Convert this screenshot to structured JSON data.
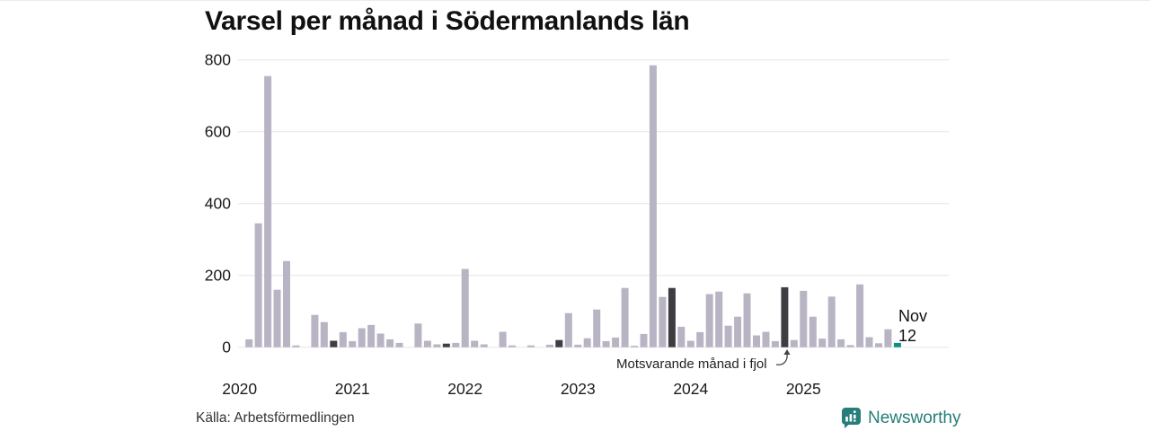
{
  "title": "Varsel per månad i Södermanlands län",
  "source": "Källa: Arbetsförmedlingen",
  "brand": {
    "name": "Newsworthy",
    "color": "#267d79"
  },
  "annotation": {
    "compare_label": "Motsvarande månad i fjol",
    "last_month": "Nov",
    "last_value": "12"
  },
  "colors": {
    "bar": "#b9b4c3",
    "highlight": "#3f3d42",
    "current": "#0b9183",
    "grid": "#e8e7ea",
    "axis_text": "#1a1a1a"
  },
  "chart_data": {
    "type": "bar",
    "title": "Varsel per månad i Södermanlands län",
    "xlabel": "",
    "ylabel": "",
    "ylim": [
      0,
      800
    ],
    "yticks": [
      0,
      200,
      400,
      600,
      800
    ],
    "grid": "horizontal",
    "legend": "none",
    "year_tick_labels": [
      "2020",
      "2021",
      "2022",
      "2023",
      "2024",
      "2025"
    ],
    "highlight_rule": "November of each year is dark; latest month (Nov 2025) is teal",
    "highlight_months": [
      "2020-11",
      "2021-11",
      "2022-11",
      "2023-11",
      "2024-11"
    ],
    "current_month": "2025-11",
    "months": [
      "2020-01",
      "2020-02",
      "2020-03",
      "2020-04",
      "2020-05",
      "2020-06",
      "2020-07",
      "2020-08",
      "2020-09",
      "2020-10",
      "2020-11",
      "2020-12",
      "2021-01",
      "2021-02",
      "2021-03",
      "2021-04",
      "2021-05",
      "2021-06",
      "2021-07",
      "2021-08",
      "2021-09",
      "2021-10",
      "2021-11",
      "2021-12",
      "2022-01",
      "2022-02",
      "2022-03",
      "2022-04",
      "2022-05",
      "2022-06",
      "2022-07",
      "2022-08",
      "2022-09",
      "2022-10",
      "2022-11",
      "2022-12",
      "2023-01",
      "2023-02",
      "2023-03",
      "2023-04",
      "2023-05",
      "2023-06",
      "2023-07",
      "2023-08",
      "2023-09",
      "2023-10",
      "2023-11",
      "2023-12",
      "2024-01",
      "2024-02",
      "2024-03",
      "2024-04",
      "2024-05",
      "2024-06",
      "2024-07",
      "2024-08",
      "2024-09",
      "2024-10",
      "2024-11",
      "2024-12",
      "2025-01",
      "2025-02",
      "2025-03",
      "2025-04",
      "2025-05",
      "2025-06",
      "2025-07",
      "2025-08",
      "2025-09",
      "2025-10",
      "2025-11"
    ],
    "values": [
      0,
      22,
      345,
      755,
      160,
      240,
      5,
      0,
      90,
      70,
      18,
      42,
      17,
      53,
      62,
      38,
      22,
      12,
      0,
      66,
      18,
      8,
      10,
      12,
      218,
      18,
      8,
      0,
      43,
      5,
      0,
      5,
      0,
      7,
      20,
      95,
      7,
      25,
      105,
      17,
      27,
      165,
      4,
      37,
      785,
      140,
      165,
      57,
      18,
      42,
      148,
      155,
      60,
      85,
      150,
      33,
      43,
      17,
      167,
      20,
      157,
      85,
      24,
      141,
      22,
      6,
      175,
      28,
      11,
      50,
      12
    ]
  }
}
